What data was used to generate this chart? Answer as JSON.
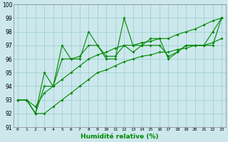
{
  "xlabel": "Humidité relative (%)",
  "x": [
    0,
    1,
    2,
    3,
    4,
    5,
    6,
    7,
    8,
    9,
    10,
    11,
    12,
    13,
    14,
    15,
    16,
    17,
    18,
    19,
    20,
    21,
    22,
    23
  ],
  "line_zigzag": [
    93,
    93,
    92,
    95,
    94,
    97,
    96,
    96,
    98,
    97,
    96,
    96,
    99,
    97,
    97,
    97.5,
    97.5,
    96,
    96.5,
    97,
    97,
    97,
    98,
    99
  ],
  "line_mid_zigzag": [
    93,
    93,
    92,
    94,
    94,
    96,
    96,
    96.2,
    97,
    97,
    96.2,
    96.2,
    97,
    96.5,
    97,
    97,
    97,
    96.2,
    96.5,
    97,
    97,
    97,
    97,
    99
  ],
  "line_upper_smooth": [
    93,
    93,
    92.5,
    93.5,
    94,
    94.5,
    95,
    95.5,
    96,
    96.3,
    96.5,
    96.8,
    97,
    97,
    97.2,
    97.3,
    97.5,
    97.5,
    97.8,
    98,
    98.2,
    98.5,
    98.8,
    99
  ],
  "line_lower_smooth": [
    93,
    93,
    92,
    92,
    92.5,
    93,
    93.5,
    94,
    94.5,
    95,
    95.2,
    95.5,
    95.8,
    96,
    96.2,
    96.3,
    96.5,
    96.5,
    96.7,
    96.8,
    97,
    97,
    97.2,
    97.5
  ],
  "bg_color": "#cce8ec",
  "grid_color": "#99cccc",
  "line_color": "#008800",
  "ylim": [
    91,
    100
  ],
  "xlim": [
    -0.5,
    23.5
  ]
}
